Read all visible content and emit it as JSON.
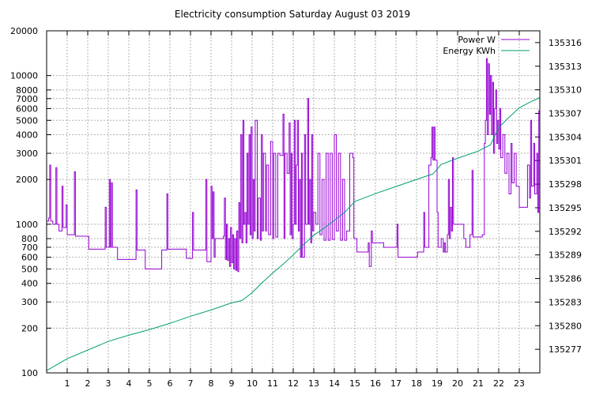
{
  "chart_data": {
    "type": "line",
    "title": "Electricity consumption Saturday August 03 2019",
    "x": {
      "range": [
        0,
        24
      ],
      "ticks": [
        1,
        2,
        3,
        4,
        5,
        6,
        7,
        8,
        9,
        10,
        11,
        12,
        13,
        14,
        15,
        16,
        17,
        18,
        19,
        20,
        21,
        22,
        23
      ],
      "grid": true
    },
    "y_left": {
      "scale": "log",
      "range": [
        100,
        20000
      ],
      "ticks": [
        100,
        200,
        300,
        400,
        500,
        600,
        700,
        800,
        1000,
        2000,
        3000,
        4000,
        5000,
        6000,
        7000,
        8000,
        10000,
        20000
      ],
      "grid": true
    },
    "y_right": {
      "scale": "linear",
      "range": [
        135274,
        135317.5
      ],
      "ticks": [
        135277,
        135280,
        135283,
        135286,
        135289,
        135292,
        135295,
        135298,
        135301,
        135304,
        135307,
        135310,
        135313,
        135316
      ]
    },
    "legend": {
      "position": "top-right"
    },
    "series": [
      {
        "name": "Power W",
        "axis": "left",
        "color": "#9400d3",
        "style": "steps",
        "points": [
          [
            0.0,
            1050
          ],
          [
            0.1,
            1100
          ],
          [
            0.15,
            2500
          ],
          [
            0.2,
            1050
          ],
          [
            0.3,
            1000
          ],
          [
            0.45,
            2400
          ],
          [
            0.5,
            1000
          ],
          [
            0.6,
            900
          ],
          [
            0.75,
            1800
          ],
          [
            0.8,
            950
          ],
          [
            0.95,
            1350
          ],
          [
            1.0,
            850
          ],
          [
            1.35,
            2250
          ],
          [
            1.4,
            830
          ],
          [
            2.0,
            830
          ],
          [
            2.05,
            680
          ],
          [
            2.8,
            680
          ],
          [
            2.85,
            1300
          ],
          [
            2.9,
            700
          ],
          [
            3.05,
            2000
          ],
          [
            3.1,
            700
          ],
          [
            3.15,
            1900
          ],
          [
            3.2,
            700
          ],
          [
            3.45,
            580
          ],
          [
            4.3,
            580
          ],
          [
            4.35,
            1700
          ],
          [
            4.4,
            670
          ],
          [
            4.75,
            670
          ],
          [
            4.8,
            500
          ],
          [
            5.55,
            500
          ],
          [
            5.6,
            670
          ],
          [
            5.85,
            1600
          ],
          [
            5.9,
            680
          ],
          [
            6.75,
            680
          ],
          [
            6.8,
            590
          ],
          [
            7.05,
            590
          ],
          [
            7.1,
            1200
          ],
          [
            7.15,
            670
          ],
          [
            7.7,
            670
          ],
          [
            7.75,
            2000
          ],
          [
            7.8,
            560
          ],
          [
            8.0,
            1800
          ],
          [
            8.05,
            800
          ],
          [
            8.1,
            1650
          ],
          [
            8.15,
            600
          ],
          [
            8.2,
            800
          ],
          [
            8.6,
            830
          ],
          [
            8.65,
            1500
          ],
          [
            8.7,
            580
          ],
          [
            8.75,
            1000
          ],
          [
            8.8,
            570
          ],
          [
            8.85,
            800
          ],
          [
            8.9,
            520
          ],
          [
            8.95,
            950
          ],
          [
            9.0,
            550
          ],
          [
            9.05,
            850
          ],
          [
            9.1,
            500
          ],
          [
            9.15,
            800
          ],
          [
            9.2,
            490
          ],
          [
            9.25,
            900
          ],
          [
            9.3,
            480
          ],
          [
            9.35,
            1400
          ],
          [
            9.4,
            800
          ],
          [
            9.45,
            4000
          ],
          [
            9.5,
            750
          ],
          [
            9.55,
            5000
          ],
          [
            9.6,
            1000
          ],
          [
            9.65,
            1200
          ],
          [
            9.7,
            750
          ],
          [
            9.75,
            3000
          ],
          [
            9.8,
            1000
          ],
          [
            9.85,
            4000
          ],
          [
            9.9,
            850
          ],
          [
            9.95,
            4500
          ],
          [
            10.0,
            800
          ],
          [
            10.05,
            2000
          ],
          [
            10.1,
            900
          ],
          [
            10.15,
            5000
          ],
          [
            10.25,
            800
          ],
          [
            10.3,
            1500
          ],
          [
            10.4,
            780
          ],
          [
            10.45,
            4000
          ],
          [
            10.5,
            900
          ],
          [
            10.55,
            3000
          ],
          [
            10.65,
            900
          ],
          [
            10.7,
            2500
          ],
          [
            10.8,
            850
          ],
          [
            10.9,
            3600
          ],
          [
            11.0,
            800
          ],
          [
            11.05,
            3000
          ],
          [
            11.15,
            820
          ],
          [
            11.25,
            3000
          ],
          [
            11.35,
            2900
          ],
          [
            11.5,
            5500
          ],
          [
            11.55,
            800
          ],
          [
            11.6,
            3000
          ],
          [
            11.7,
            2200
          ],
          [
            11.8,
            4800
          ],
          [
            11.85,
            850
          ],
          [
            11.9,
            3000
          ],
          [
            11.95,
            800
          ],
          [
            12.0,
            1000
          ],
          [
            12.05,
            5000
          ],
          [
            12.1,
            1000
          ],
          [
            12.15,
            2500
          ],
          [
            12.2,
            5000
          ],
          [
            12.25,
            900
          ],
          [
            12.3,
            2000
          ],
          [
            12.35,
            600
          ],
          [
            12.4,
            3000
          ],
          [
            12.45,
            600
          ],
          [
            12.55,
            4000
          ],
          [
            12.6,
            1000
          ],
          [
            12.7,
            7000
          ],
          [
            12.75,
            1000
          ],
          [
            12.8,
            2000
          ],
          [
            12.85,
            750
          ],
          [
            12.9,
            4000
          ],
          [
            12.95,
            900
          ],
          [
            13.0,
            1200
          ],
          [
            13.1,
            1000
          ],
          [
            13.2,
            3000
          ],
          [
            13.3,
            850
          ],
          [
            13.4,
            2000
          ],
          [
            13.5,
            780
          ],
          [
            13.6,
            3000
          ],
          [
            13.7,
            780
          ],
          [
            13.8,
            3000
          ],
          [
            13.9,
            790
          ],
          [
            14.0,
            4000
          ],
          [
            14.1,
            900
          ],
          [
            14.2,
            3000
          ],
          [
            14.3,
            780
          ],
          [
            14.4,
            2000
          ],
          [
            14.5,
            780
          ],
          [
            14.6,
            900
          ],
          [
            14.75,
            3000
          ],
          [
            14.9,
            2800
          ],
          [
            14.95,
            800
          ],
          [
            15.1,
            650
          ],
          [
            15.6,
            650
          ],
          [
            15.65,
            750
          ],
          [
            15.7,
            520
          ],
          [
            15.8,
            900
          ],
          [
            15.85,
            750
          ],
          [
            16.35,
            750
          ],
          [
            16.4,
            700
          ],
          [
            17.0,
            700
          ],
          [
            17.05,
            1000
          ],
          [
            17.1,
            600
          ],
          [
            18.0,
            600
          ],
          [
            18.05,
            650
          ],
          [
            18.3,
            650
          ],
          [
            18.35,
            1200
          ],
          [
            18.4,
            700
          ],
          [
            18.55,
            700
          ],
          [
            18.6,
            2500
          ],
          [
            18.7,
            2800
          ],
          [
            18.75,
            4500
          ],
          [
            18.8,
            2700
          ],
          [
            18.85,
            4500
          ],
          [
            18.9,
            2700
          ],
          [
            19.0,
            1200
          ],
          [
            19.05,
            700
          ],
          [
            19.15,
            700
          ],
          [
            19.2,
            800
          ],
          [
            19.3,
            650
          ],
          [
            19.35,
            750
          ],
          [
            19.4,
            650
          ],
          [
            19.5,
            850
          ],
          [
            19.55,
            2000
          ],
          [
            19.6,
            800
          ],
          [
            19.65,
            1300
          ],
          [
            19.7,
            900
          ],
          [
            19.75,
            2800
          ],
          [
            19.8,
            1000
          ],
          [
            20.0,
            1000
          ],
          [
            20.3,
            800
          ],
          [
            20.4,
            700
          ],
          [
            20.6,
            850
          ],
          [
            20.7,
            2300
          ],
          [
            20.75,
            820
          ],
          [
            21.2,
            850
          ],
          [
            21.3,
            3500
          ],
          [
            21.35,
            5000
          ],
          [
            21.4,
            13000
          ],
          [
            21.45,
            4000
          ],
          [
            21.5,
            12000
          ],
          [
            21.55,
            5500
          ],
          [
            21.6,
            10000
          ],
          [
            21.65,
            4000
          ],
          [
            21.7,
            9000
          ],
          [
            21.75,
            3000
          ],
          [
            21.8,
            6000
          ],
          [
            21.85,
            8000
          ],
          [
            21.9,
            3500
          ],
          [
            21.95,
            5000
          ],
          [
            22.0,
            3200
          ],
          [
            22.05,
            6000
          ],
          [
            22.1,
            2800
          ],
          [
            22.2,
            4000
          ],
          [
            22.3,
            2200
          ],
          [
            22.4,
            3000
          ],
          [
            22.5,
            1600
          ],
          [
            22.6,
            3500
          ],
          [
            22.65,
            1900
          ],
          [
            22.75,
            3000
          ],
          [
            22.85,
            1800
          ],
          [
            23.0,
            1300
          ],
          [
            23.35,
            1300
          ],
          [
            23.4,
            2500
          ],
          [
            23.5,
            1500
          ],
          [
            23.55,
            5000
          ],
          [
            23.6,
            1800
          ],
          [
            23.7,
            3500
          ],
          [
            23.75,
            1600
          ],
          [
            23.85,
            3000
          ],
          [
            23.9,
            1200
          ],
          [
            23.95,
            5800
          ],
          [
            24.0,
            1700
          ]
        ]
      },
      {
        "name": "Energy KWh",
        "axis": "right",
        "color": "#009e73",
        "style": "line",
        "points": [
          [
            0,
            135274.3
          ],
          [
            1,
            135275.8
          ],
          [
            2,
            135276.9
          ],
          [
            3,
            135278.0
          ],
          [
            4,
            135278.8
          ],
          [
            5,
            135279.5
          ],
          [
            6,
            135280.3
          ],
          [
            7,
            135281.2
          ],
          [
            8,
            135282.0
          ],
          [
            9,
            135282.9
          ],
          [
            9.5,
            135283.2
          ],
          [
            10,
            135284.2
          ],
          [
            10.5,
            135285.5
          ],
          [
            11,
            135286.7
          ],
          [
            11.5,
            135287.8
          ],
          [
            12,
            135289.0
          ],
          [
            12.5,
            135290.3
          ],
          [
            13,
            135291.5
          ],
          [
            13.5,
            135292.4
          ],
          [
            14,
            135293.4
          ],
          [
            14.5,
            135294.4
          ],
          [
            15,
            135295.8
          ],
          [
            16,
            135296.8
          ],
          [
            17,
            135297.7
          ],
          [
            18,
            135298.6
          ],
          [
            18.8,
            135299.3
          ],
          [
            19.2,
            135300.5
          ],
          [
            20,
            135301.3
          ],
          [
            21,
            135302.2
          ],
          [
            21.6,
            135303.0
          ],
          [
            22,
            135305.2
          ],
          [
            22.5,
            135306.5
          ],
          [
            23,
            135307.7
          ],
          [
            23.5,
            135308.4
          ],
          [
            24,
            135309.0
          ]
        ]
      }
    ]
  }
}
